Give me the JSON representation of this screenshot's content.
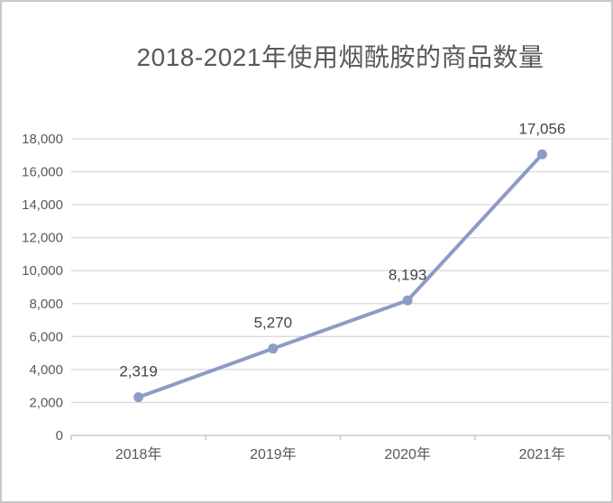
{
  "chart_data": {
    "type": "line",
    "title": "2018-2021年使用烟酰胺的商品数量",
    "categories": [
      "2018年",
      "2019年",
      "2020年",
      "2021年"
    ],
    "values": [
      2319,
      5270,
      8193,
      17056
    ],
    "data_labels": [
      "2,319",
      "5,270",
      "8,193",
      "17,056"
    ],
    "ylim": [
      0,
      18000
    ],
    "ytick_step": 2000,
    "ytick_labels": [
      "0",
      "2,000",
      "4,000",
      "6,000",
      "8,000",
      "10,000",
      "12,000",
      "14,000",
      "16,000",
      "18,000"
    ],
    "xlabel": "",
    "ylabel": "",
    "grid": true,
    "legend": "none",
    "colors": {
      "line": "#8C9CC6",
      "marker": "#8C9CC6",
      "gridline": "#D9D9D9",
      "axis_line": "#BFBFBF",
      "axis_label": "#595959",
      "data_label": "#454545",
      "title": "#595959",
      "background": "#FFFFFF",
      "frame_border": "#C8C8C8"
    }
  }
}
